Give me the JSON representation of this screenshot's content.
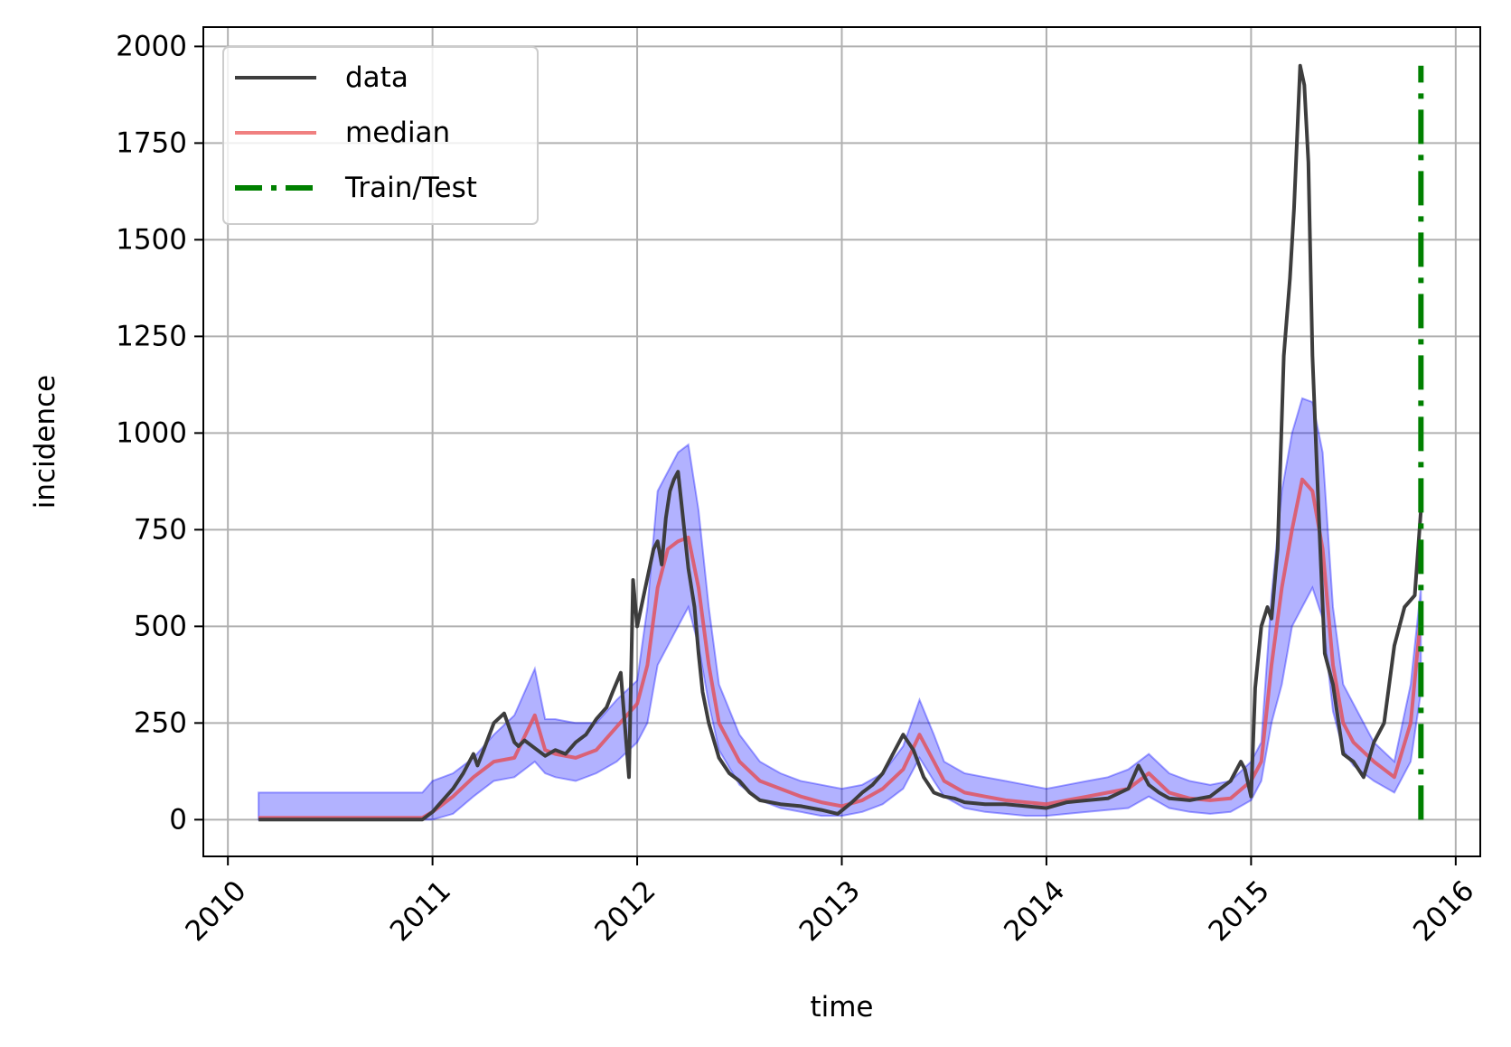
{
  "chart_data": {
    "type": "line",
    "title": "",
    "xlabel": "time",
    "ylabel": "incidence",
    "xlim": [
      2009.88,
      2016.12
    ],
    "ylim": [
      -95,
      2050
    ],
    "x_ticks": [
      2010,
      2011,
      2012,
      2013,
      2014,
      2015,
      2016
    ],
    "x_tick_labels": [
      "2010",
      "2011",
      "2012",
      "2013",
      "2014",
      "2015",
      "2016"
    ],
    "y_ticks": [
      0,
      250,
      500,
      750,
      1000,
      1250,
      1500,
      1750,
      2000
    ],
    "y_tick_labels": [
      "0",
      "250",
      "500",
      "750",
      "1000",
      "1250",
      "1500",
      "1750",
      "2000"
    ],
    "grid": true,
    "legend_position": "top-left",
    "legend": [
      {
        "label": "data",
        "style": "solid",
        "color": "#3d3d3d"
      },
      {
        "label": "median",
        "style": "solid",
        "color": "#f08080"
      },
      {
        "label": "Train/Test",
        "style": "dashdot",
        "color": "#008000"
      }
    ],
    "colors": {
      "data": "#3d3d3d",
      "median": "#e0525e",
      "band": "#0000ff",
      "split": "#008000",
      "grid": "#b0b0b0"
    },
    "series": [
      {
        "name": "data",
        "x": [
          2010.15,
          2010.5,
          2010.95,
          2011.0,
          2011.05,
          2011.1,
          2011.15,
          2011.2,
          2011.22,
          2011.25,
          2011.3,
          2011.35,
          2011.4,
          2011.42,
          2011.45,
          2011.5,
          2011.55,
          2011.6,
          2011.65,
          2011.7,
          2011.75,
          2011.8,
          2011.85,
          2011.88,
          2011.92,
          2011.96,
          2011.98,
          2012.0,
          2012.04,
          2012.08,
          2012.1,
          2012.12,
          2012.14,
          2012.16,
          2012.18,
          2012.2,
          2012.22,
          2012.25,
          2012.28,
          2012.3,
          2012.32,
          2012.35,
          2012.4,
          2012.45,
          2012.5,
          2012.55,
          2012.6,
          2012.7,
          2012.8,
          2012.9,
          2012.98,
          2013.05,
          2013.1,
          2013.15,
          2013.2,
          2013.25,
          2013.3,
          2013.35,
          2013.4,
          2013.45,
          2013.5,
          2013.55,
          2013.6,
          2013.7,
          2013.8,
          2013.9,
          2014.0,
          2014.1,
          2014.2,
          2014.3,
          2014.4,
          2014.45,
          2014.5,
          2014.55,
          2014.6,
          2014.7,
          2014.8,
          2014.9,
          2014.95,
          2014.97,
          2015.0,
          2015.02,
          2015.05,
          2015.08,
          2015.1,
          2015.13,
          2015.16,
          2015.19,
          2015.21,
          2015.24,
          2015.26,
          2015.28,
          2015.3,
          2015.33,
          2015.36,
          2015.4,
          2015.45,
          2015.5,
          2015.55,
          2015.6,
          2015.65,
          2015.7,
          2015.75,
          2015.8,
          2015.83
        ],
        "values": [
          0,
          0,
          0,
          20,
          50,
          80,
          120,
          170,
          140,
          180,
          250,
          275,
          200,
          190,
          205,
          185,
          165,
          180,
          170,
          200,
          220,
          260,
          290,
          330,
          380,
          110,
          620,
          500,
          600,
          700,
          720,
          660,
          780,
          850,
          880,
          900,
          800,
          650,
          550,
          430,
          330,
          250,
          160,
          120,
          100,
          70,
          50,
          40,
          35,
          25,
          15,
          45,
          70,
          90,
          120,
          170,
          220,
          180,
          110,
          70,
          60,
          55,
          45,
          40,
          40,
          35,
          30,
          45,
          50,
          55,
          80,
          140,
          90,
          70,
          55,
          50,
          60,
          100,
          150,
          130,
          60,
          340,
          500,
          550,
          520,
          700,
          1200,
          1400,
          1580,
          1950,
          1900,
          1700,
          1200,
          800,
          430,
          350,
          170,
          150,
          110,
          200,
          250,
          450,
          550,
          580,
          800
        ]
      },
      {
        "name": "median",
        "x": [
          2010.15,
          2010.5,
          2010.95,
          2011.0,
          2011.1,
          2011.2,
          2011.3,
          2011.4,
          2011.5,
          2011.55,
          2011.6,
          2011.7,
          2011.8,
          2011.9,
          2012.0,
          2012.05,
          2012.1,
          2012.15,
          2012.2,
          2012.25,
          2012.3,
          2012.35,
          2012.4,
          2012.5,
          2012.6,
          2012.7,
          2012.8,
          2012.9,
          2013.0,
          2013.1,
          2013.2,
          2013.3,
          2013.38,
          2013.45,
          2013.5,
          2013.6,
          2013.7,
          2013.8,
          2013.9,
          2014.0,
          2014.1,
          2014.2,
          2014.3,
          2014.4,
          2014.5,
          2014.6,
          2014.7,
          2014.8,
          2014.9,
          2015.0,
          2015.05,
          2015.1,
          2015.15,
          2015.2,
          2015.25,
          2015.3,
          2015.35,
          2015.4,
          2015.45,
          2015.5,
          2015.6,
          2015.7,
          2015.78,
          2015.83
        ],
        "values": [
          5,
          5,
          5,
          20,
          60,
          110,
          150,
          160,
          270,
          180,
          170,
          160,
          180,
          240,
          300,
          400,
          600,
          700,
          720,
          730,
          600,
          400,
          250,
          150,
          100,
          80,
          60,
          45,
          35,
          50,
          80,
          130,
          220,
          150,
          100,
          70,
          60,
          50,
          45,
          40,
          50,
          60,
          70,
          80,
          120,
          70,
          55,
          50,
          55,
          100,
          150,
          400,
          600,
          750,
          880,
          850,
          700,
          400,
          250,
          200,
          150,
          110,
          250,
          530
        ]
      }
    ],
    "interval_band": {
      "x": [
        2010.15,
        2010.5,
        2010.95,
        2011.0,
        2011.1,
        2011.2,
        2011.3,
        2011.4,
        2011.5,
        2011.55,
        2011.6,
        2011.7,
        2011.8,
        2011.9,
        2012.0,
        2012.05,
        2012.1,
        2012.15,
        2012.2,
        2012.25,
        2012.3,
        2012.35,
        2012.4,
        2012.5,
        2012.6,
        2012.7,
        2012.8,
        2012.9,
        2013.0,
        2013.1,
        2013.2,
        2013.3,
        2013.38,
        2013.45,
        2013.5,
        2013.6,
        2013.7,
        2013.8,
        2013.9,
        2014.0,
        2014.1,
        2014.2,
        2014.3,
        2014.4,
        2014.5,
        2014.6,
        2014.7,
        2014.8,
        2014.9,
        2015.0,
        2015.05,
        2015.1,
        2015.15,
        2015.2,
        2015.25,
        2015.3,
        2015.35,
        2015.4,
        2015.45,
        2015.5,
        2015.6,
        2015.7,
        2015.78,
        2015.83
      ],
      "lower": [
        0,
        0,
        0,
        0,
        15,
        60,
        100,
        110,
        150,
        120,
        110,
        100,
        120,
        150,
        200,
        250,
        400,
        450,
        500,
        550,
        450,
        300,
        180,
        90,
        50,
        30,
        20,
        10,
        10,
        20,
        40,
        80,
        160,
        100,
        60,
        30,
        20,
        15,
        10,
        10,
        15,
        20,
        25,
        30,
        60,
        30,
        20,
        15,
        20,
        50,
        100,
        250,
        350,
        500,
        550,
        600,
        520,
        280,
        180,
        140,
        100,
        70,
        150,
        330
      ],
      "upper": [
        70,
        70,
        70,
        100,
        120,
        160,
        220,
        270,
        390,
        260,
        260,
        250,
        250,
        310,
        360,
        550,
        850,
        900,
        950,
        970,
        800,
        550,
        350,
        220,
        150,
        120,
        100,
        90,
        80,
        90,
        120,
        190,
        310,
        220,
        150,
        120,
        110,
        100,
        90,
        80,
        90,
        100,
        110,
        130,
        170,
        120,
        100,
        90,
        100,
        150,
        200,
        580,
        850,
        1000,
        1090,
        1080,
        950,
        550,
        350,
        300,
        200,
        150,
        350,
        600
      ]
    },
    "split_line": {
      "x": 2015.83,
      "y_range": [
        0,
        1950
      ]
    }
  }
}
